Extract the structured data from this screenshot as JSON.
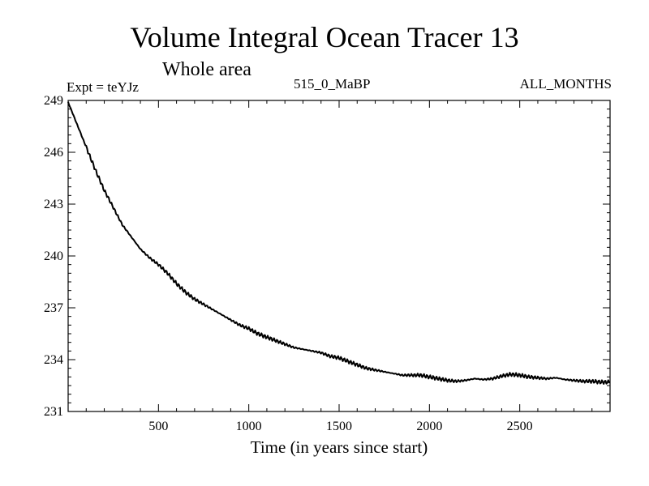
{
  "chart_data": {
    "type": "line",
    "title": "Volume Integral Ocean Tracer 13",
    "subtitle": "Whole area",
    "experiment_label": "Expt = teYJz",
    "run_label": "515_0_MaBP",
    "period_label": "ALL_MONTHS",
    "xlabel": "Time (in years since start)",
    "ylabel": "",
    "xlim": [
      0,
      3000
    ],
    "ylim": [
      231,
      249
    ],
    "xticks": [
      500,
      1000,
      1500,
      2000,
      2500
    ],
    "yticks": [
      231,
      234,
      237,
      240,
      243,
      246,
      249
    ],
    "series": [
      {
        "name": "tracer13",
        "x": [
          0,
          50,
          100,
          150,
          200,
          250,
          300,
          350,
          400,
          450,
          500,
          550,
          600,
          650,
          700,
          750,
          800,
          850,
          900,
          950,
          1000,
          1050,
          1100,
          1150,
          1200,
          1250,
          1300,
          1350,
          1400,
          1450,
          1500,
          1550,
          1600,
          1650,
          1700,
          1750,
          1800,
          1850,
          1900,
          1950,
          2000,
          2050,
          2100,
          2150,
          2200,
          2250,
          2300,
          2350,
          2400,
          2450,
          2500,
          2550,
          2600,
          2650,
          2700,
          2750,
          2800,
          2850,
          2900,
          2950,
          3000
        ],
        "values": [
          248.9,
          247.6,
          246.3,
          245.0,
          243.8,
          242.8,
          241.8,
          241.1,
          240.4,
          239.9,
          239.5,
          239.0,
          238.4,
          237.9,
          237.5,
          237.2,
          236.9,
          236.6,
          236.3,
          236.0,
          235.8,
          235.5,
          235.3,
          235.1,
          234.9,
          234.7,
          234.6,
          234.5,
          234.4,
          234.2,
          234.1,
          233.9,
          233.7,
          233.5,
          233.4,
          233.3,
          233.2,
          233.1,
          233.1,
          233.1,
          233.0,
          232.9,
          232.8,
          232.75,
          232.8,
          232.9,
          232.85,
          232.9,
          233.05,
          233.15,
          233.1,
          233.0,
          232.95,
          232.9,
          232.95,
          232.85,
          232.8,
          232.75,
          232.75,
          232.7,
          232.7
        ]
      }
    ]
  }
}
